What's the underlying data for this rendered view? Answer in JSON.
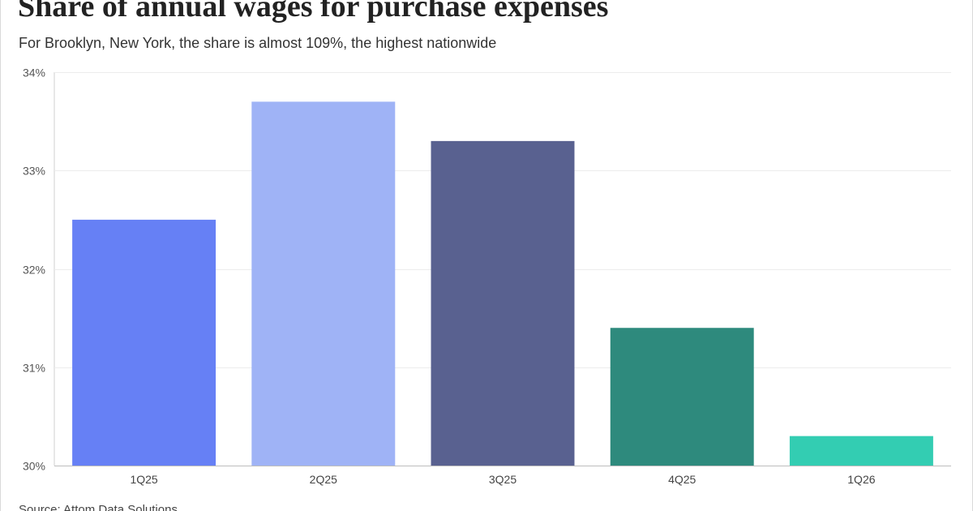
{
  "title": "Share of annual wages for purchase expenses",
  "subtitle": "For Brooklyn, New York, the share is almost 109%, the highest nationwide",
  "source": "Source: Attom Data Solutions",
  "chart_data": {
    "type": "bar",
    "categories": [
      "1Q25",
      "2Q25",
      "3Q25",
      "4Q25",
      "1Q26"
    ],
    "values": [
      32.5,
      33.7,
      33.3,
      31.4,
      30.3
    ],
    "colors": [
      "#6680f5",
      "#9fb3f6",
      "#596190",
      "#2e8a7d",
      "#33cdb2"
    ],
    "ylim": [
      30,
      34
    ],
    "y_ticks": [
      30,
      31,
      32,
      33,
      34
    ],
    "y_tick_labels": [
      "30%",
      "31%",
      "32%",
      "33%",
      "34%"
    ],
    "grid": true
  }
}
